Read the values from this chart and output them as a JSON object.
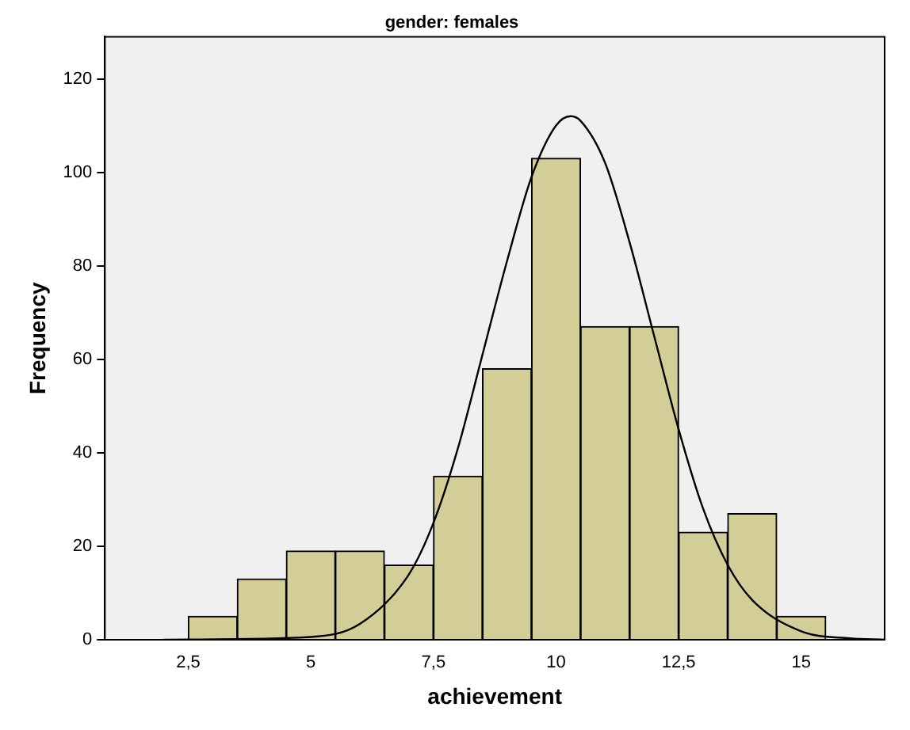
{
  "chart_data": {
    "type": "histogram",
    "title": "gender: females",
    "xlabel": "achievement",
    "ylabel": "Frequency",
    "bins": [
      2.5,
      3.5,
      4.5,
      5.5,
      6.5,
      7.5,
      8.5,
      9.5,
      10.5,
      11.5,
      12.5,
      13.5,
      14.5,
      15.5
    ],
    "values": [
      5,
      13,
      19,
      19,
      16,
      35,
      58,
      103,
      67,
      67,
      23,
      27,
      5
    ],
    "color": "#d3ce97",
    "series": [
      {
        "type": "line",
        "color": "#000000",
        "x": [
          2,
          5,
          6,
          7,
          7.5,
          8,
          8.5,
          9,
          9.5,
          10,
          10.3,
          10.5,
          11,
          11.5,
          12,
          12.5,
          13,
          13.5,
          14,
          15,
          16,
          16.7
        ],
        "values": [
          0,
          0.6,
          3.4,
          14,
          25,
          41,
          61,
          81,
          99,
          110,
          112,
          111,
          102,
          85,
          65,
          45,
          28,
          16,
          8.5,
          1.8,
          0.3,
          0
        ]
      }
    ],
    "xlim": [
      0.8,
      16.7
    ],
    "xticks": [
      {
        "value": 2.5,
        "label": "2,5"
      },
      5,
      {
        "value": 7.5,
        "label": "7,5"
      },
      10,
      {
        "value": 12.5,
        "label": "12,5"
      },
      15
    ],
    "ylim": [
      0,
      129
    ],
    "yticks": [
      0,
      20,
      40,
      60,
      80,
      100,
      120
    ],
    "grid": false,
    "legend": false,
    "marker": "none"
  }
}
